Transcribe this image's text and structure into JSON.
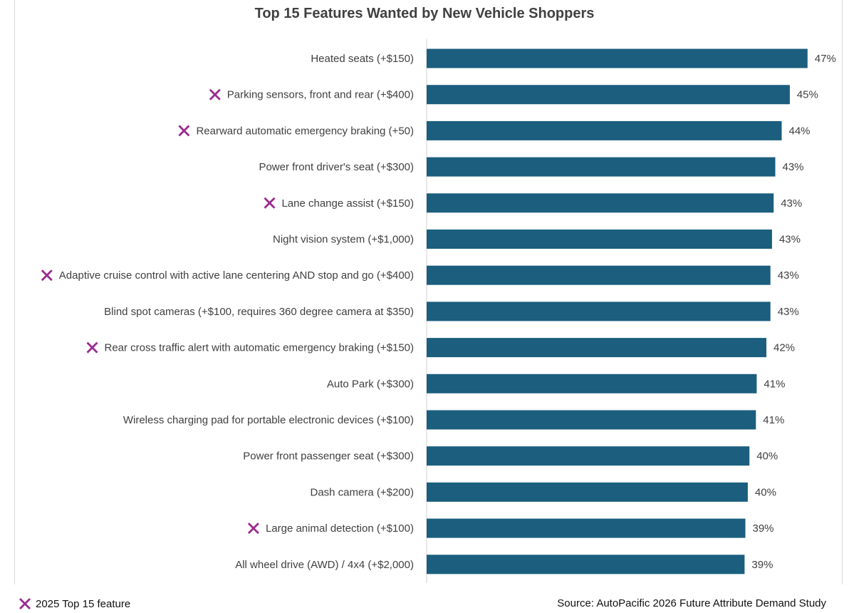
{
  "marker_color": "#9b2b8f",
  "bar_color": "#1b5e7e",
  "marker_icon": "x-mark-icon",
  "legend": {
    "label": "2025 Top 15 feature"
  },
  "source": "Source: AutoPacific 2026 Future Attribute Demand Study",
  "chart_data": {
    "type": "bar",
    "orientation": "horizontal",
    "title": "Top 15 Features Wanted by New Vehicle Shoppers",
    "xlabel": "",
    "ylabel": "",
    "grid": false,
    "legend_position": "bottom-left",
    "unit": "%",
    "categories": [
      "Heated seats (+$150)",
      "Parking sensors, front and rear (+$400)",
      "Rearward automatic emergency braking (+50)",
      "Power front driver's seat (+$300)",
      "Lane change assist (+$150)",
      "Night vision system (+$1,000)",
      "Adaptive cruise control with active lane centering AND stop and go (+$400)",
      "Blind spot cameras (+$100, requires 360 degree camera at $350)",
      "Rear cross traffic alert with automatic emergency braking (+$150)",
      "Auto Park (+$300)",
      "Wireless charging pad for portable electronic devices (+$100)",
      "Power front passenger seat (+$300)",
      "Dash camera (+$200)",
      "Large animal detection (+$100)",
      "All wheel drive (AWD) / 4x4 (+$2,000)"
    ],
    "values": [
      47,
      45,
      44,
      43,
      43,
      43,
      43,
      43,
      42,
      41,
      41,
      40,
      40,
      39,
      39
    ],
    "value_labels": [
      "47%",
      "45%",
      "44%",
      "43%",
      "43%",
      "43%",
      "43%",
      "43%",
      "42%",
      "41%",
      "41%",
      "40%",
      "40%",
      "39%",
      "39%"
    ],
    "precise_values": [
      47.2,
      45.0,
      44.0,
      43.2,
      43.0,
      42.8,
      42.6,
      42.6,
      42.1,
      40.9,
      40.8,
      40.0,
      39.8,
      39.5,
      39.4
    ],
    "top15_2025": [
      false,
      true,
      true,
      false,
      true,
      false,
      true,
      false,
      true,
      false,
      false,
      false,
      false,
      true,
      false
    ]
  }
}
